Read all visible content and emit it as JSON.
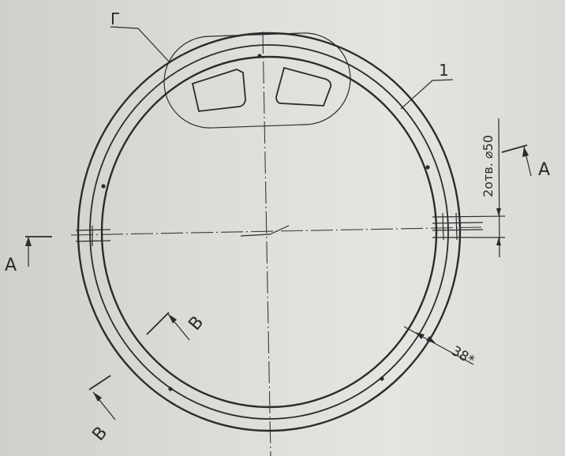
{
  "labels": {
    "detail_view": "Г",
    "part_number": "1",
    "section_a_left": "А",
    "section_a_right": "А",
    "section_b_upper": "В",
    "section_b_lower": "В",
    "holes_note": "2отв. ⌀50",
    "width_dimension": "38*"
  },
  "colors": {
    "ink": "#2b2b2b",
    "paper": "#dededb"
  }
}
